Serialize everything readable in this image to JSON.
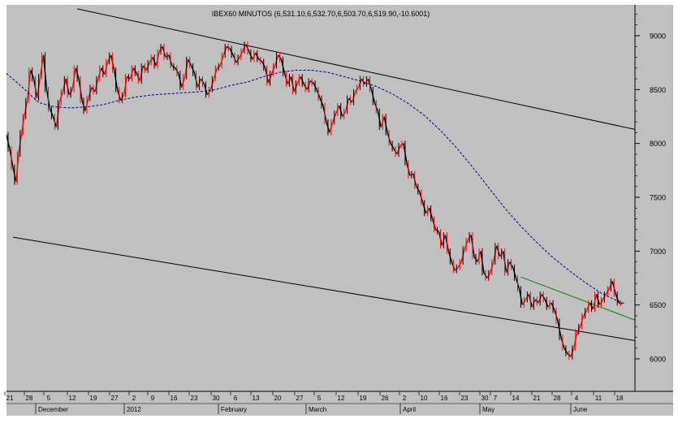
{
  "chart_data": {
    "type": "line",
    "title": "IBEX60 MINUTOS (6,531.10,6,532.70,6,503.70,6,519.90,-10.6001)",
    "xlabel": "",
    "ylabel": "",
    "ylim": [
      5850,
      9250
    ],
    "y_ticks": [
      6000,
      6500,
      7000,
      7500,
      8000,
      8500,
      9000
    ],
    "x_tick_labels": [
      "21",
      "28",
      "5",
      "12",
      "19",
      "27",
      "2",
      "9",
      "16",
      "23",
      "30",
      "6",
      "13",
      "20",
      "27",
      "5",
      "12",
      "19",
      "26",
      "2",
      "10",
      "16",
      "23",
      "30",
      "7",
      "14",
      "21",
      "28",
      "4",
      "11",
      "18"
    ],
    "month_labels": [
      "December",
      "2012",
      "February",
      "March",
      "April",
      "May",
      "June"
    ],
    "grid": false,
    "colors": {
      "background": "#c0c0c0",
      "price_up": "#ff0000",
      "price_down": "#000000",
      "moving_average": "#00008b",
      "channel": "#000000",
      "support": "#008000"
    },
    "price_points": [
      [
        0,
        8080
      ],
      [
        4,
        7950
      ],
      [
        8,
        7780
      ],
      [
        12,
        7640
      ],
      [
        15,
        7900
      ],
      [
        19,
        8100
      ],
      [
        22,
        8250
      ],
      [
        26,
        8400
      ],
      [
        30,
        8680
      ],
      [
        34,
        8600
      ],
      [
        38,
        8420
      ],
      [
        42,
        8620
      ],
      [
        46,
        8820
      ],
      [
        50,
        8500
      ],
      [
        54,
        8320
      ],
      [
        58,
        8250
      ],
      [
        62,
        8150
      ],
      [
        66,
        8380
      ],
      [
        70,
        8480
      ],
      [
        74,
        8600
      ],
      [
        78,
        8450
      ],
      [
        82,
        8500
      ],
      [
        86,
        8700
      ],
      [
        90,
        8600
      ],
      [
        94,
        8400
      ],
      [
        98,
        8300
      ],
      [
        102,
        8420
      ],
      [
        106,
        8520
      ],
      [
        110,
        8480
      ],
      [
        114,
        8600
      ],
      [
        118,
        8700
      ],
      [
        122,
        8640
      ],
      [
        126,
        8760
      ],
      [
        130,
        8820
      ],
      [
        134,
        8680
      ],
      [
        138,
        8500
      ],
      [
        142,
        8400
      ],
      [
        146,
        8450
      ],
      [
        150,
        8620
      ],
      [
        154,
        8600
      ],
      [
        158,
        8700
      ],
      [
        162,
        8650
      ],
      [
        166,
        8580
      ],
      [
        170,
        8720
      ],
      [
        174,
        8680
      ],
      [
        178,
        8750
      ],
      [
        182,
        8800
      ],
      [
        186,
        8720
      ],
      [
        190,
        8850
      ],
      [
        194,
        8900
      ],
      [
        198,
        8800
      ],
      [
        202,
        8820
      ],
      [
        206,
        8720
      ],
      [
        210,
        8700
      ],
      [
        214,
        8650
      ],
      [
        218,
        8520
      ],
      [
        222,
        8620
      ],
      [
        226,
        8780
      ],
      [
        230,
        8720
      ],
      [
        234,
        8650
      ],
      [
        238,
        8520
      ],
      [
        242,
        8600
      ],
      [
        246,
        8550
      ],
      [
        250,
        8450
      ],
      [
        254,
        8500
      ],
      [
        258,
        8600
      ],
      [
        262,
        8700
      ],
      [
        266,
        8720
      ],
      [
        270,
        8820
      ],
      [
        274,
        8900
      ],
      [
        278,
        8880
      ],
      [
        282,
        8820
      ],
      [
        286,
        8750
      ],
      [
        290,
        8800
      ],
      [
        294,
        8860
      ],
      [
        298,
        8920
      ],
      [
        302,
        8850
      ],
      [
        306,
        8780
      ],
      [
        310,
        8840
      ],
      [
        314,
        8780
      ],
      [
        318,
        8760
      ],
      [
        322,
        8700
      ],
      [
        326,
        8560
      ],
      [
        330,
        8650
      ],
      [
        334,
        8720
      ],
      [
        338,
        8820
      ],
      [
        342,
        8780
      ],
      [
        346,
        8650
      ],
      [
        350,
        8550
      ],
      [
        354,
        8620
      ],
      [
        358,
        8480
      ],
      [
        362,
        8560
      ],
      [
        366,
        8620
      ],
      [
        370,
        8550
      ],
      [
        374,
        8500
      ],
      [
        378,
        8580
      ],
      [
        382,
        8560
      ],
      [
        386,
        8500
      ],
      [
        390,
        8420
      ],
      [
        394,
        8350
      ],
      [
        398,
        8200
      ],
      [
        402,
        8100
      ],
      [
        406,
        8200
      ],
      [
        410,
        8280
      ],
      [
        414,
        8350
      ],
      [
        418,
        8250
      ],
      [
        422,
        8300
      ],
      [
        426,
        8420
      ],
      [
        430,
        8380
      ],
      [
        434,
        8480
      ],
      [
        438,
        8520
      ],
      [
        442,
        8600
      ],
      [
        446,
        8550
      ],
      [
        450,
        8600
      ],
      [
        454,
        8500
      ],
      [
        458,
        8380
      ],
      [
        462,
        8300
      ],
      [
        466,
        8150
      ],
      [
        470,
        8250
      ],
      [
        474,
        8100
      ],
      [
        478,
        8000
      ],
      [
        482,
        7950
      ],
      [
        486,
        7900
      ],
      [
        490,
        7980
      ],
      [
        494,
        8000
      ],
      [
        498,
        7820
      ],
      [
        502,
        7700
      ],
      [
        506,
        7720
      ],
      [
        510,
        7600
      ],
      [
        514,
        7550
      ],
      [
        518,
        7450
      ],
      [
        522,
        7350
      ],
      [
        526,
        7400
      ],
      [
        530,
        7300
      ],
      [
        534,
        7200
      ],
      [
        538,
        7180
      ],
      [
        542,
        7050
      ],
      [
        546,
        7150
      ],
      [
        550,
        7000
      ],
      [
        554,
        6900
      ],
      [
        558,
        6820
      ],
      [
        562,
        6850
      ],
      [
        566,
        6900
      ],
      [
        570,
        7020
      ],
      [
        574,
        7100
      ],
      [
        578,
        7150
      ],
      [
        582,
        6950
      ],
      [
        586,
        6900
      ],
      [
        590,
        7000
      ],
      [
        594,
        6800
      ],
      [
        598,
        6750
      ],
      [
        602,
        6800
      ],
      [
        606,
        6900
      ],
      [
        610,
        7050
      ],
      [
        614,
        6950
      ],
      [
        618,
        7000
      ],
      [
        622,
        6800
      ],
      [
        626,
        6900
      ],
      [
        630,
        6850
      ],
      [
        634,
        6750
      ],
      [
        638,
        6650
      ],
      [
        642,
        6500
      ],
      [
        646,
        6550
      ],
      [
        650,
        6600
      ],
      [
        654,
        6480
      ],
      [
        658,
        6550
      ],
      [
        662,
        6520
      ],
      [
        666,
        6600
      ],
      [
        670,
        6550
      ],
      [
        674,
        6480
      ],
      [
        678,
        6520
      ],
      [
        682,
        6450
      ],
      [
        686,
        6350
      ],
      [
        690,
        6200
      ],
      [
        694,
        6100
      ],
      [
        698,
        6050
      ],
      [
        702,
        6020
      ],
      [
        706,
        6100
      ],
      [
        710,
        6250
      ],
      [
        714,
        6300
      ],
      [
        718,
        6400
      ],
      [
        722,
        6450
      ],
      [
        726,
        6520
      ],
      [
        730,
        6460
      ],
      [
        734,
        6600
      ],
      [
        738,
        6500
      ],
      [
        742,
        6550
      ],
      [
        746,
        6600
      ],
      [
        750,
        6650
      ],
      [
        754,
        6720
      ],
      [
        758,
        6600
      ],
      [
        762,
        6520
      ],
      [
        766,
        6510
      ]
    ],
    "moving_average_points": [
      [
        0,
        8650
      ],
      [
        20,
        8520
      ],
      [
        40,
        8380
      ],
      [
        60,
        8340
      ],
      [
        80,
        8330
      ],
      [
        100,
        8340
      ],
      [
        120,
        8360
      ],
      [
        140,
        8400
      ],
      [
        160,
        8430
      ],
      [
        180,
        8450
      ],
      [
        200,
        8460
      ],
      [
        220,
        8470
      ],
      [
        240,
        8480
      ],
      [
        260,
        8500
      ],
      [
        280,
        8540
      ],
      [
        300,
        8570
      ],
      [
        320,
        8620
      ],
      [
        340,
        8660
      ],
      [
        360,
        8680
      ],
      [
        380,
        8680
      ],
      [
        400,
        8660
      ],
      [
        420,
        8620
      ],
      [
        440,
        8580
      ],
      [
        460,
        8530
      ],
      [
        480,
        8460
      ],
      [
        500,
        8370
      ],
      [
        520,
        8260
      ],
      [
        540,
        8120
      ],
      [
        560,
        7960
      ],
      [
        580,
        7780
      ],
      [
        600,
        7590
      ],
      [
        620,
        7400
      ],
      [
        640,
        7230
      ],
      [
        660,
        7080
      ],
      [
        680,
        6940
      ],
      [
        700,
        6820
      ],
      [
        720,
        6710
      ],
      [
        740,
        6610
      ],
      [
        760,
        6540
      ],
      [
        770,
        6510
      ]
    ],
    "channel_upper": [
      [
        88,
        9250
      ],
      [
        782,
        8130
      ]
    ],
    "channel_lower": [
      [
        8,
        7130
      ],
      [
        782,
        6170
      ]
    ],
    "support_line": [
      [
        640,
        6760
      ],
      [
        782,
        6360
      ]
    ],
    "last_close": 6519.9
  }
}
